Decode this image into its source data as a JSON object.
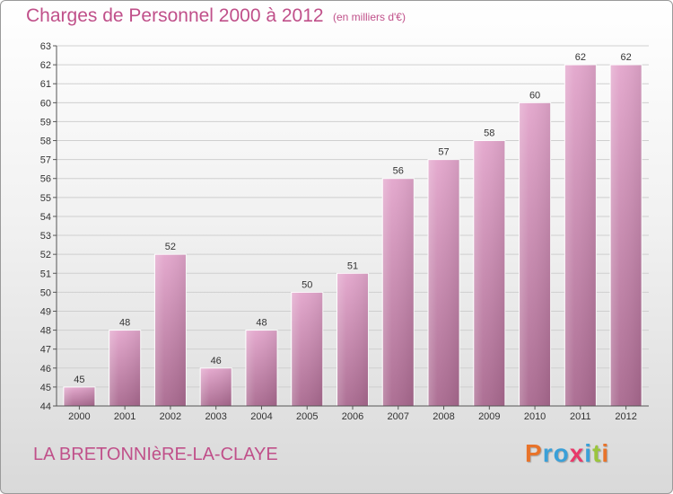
{
  "header": {
    "title": "Charges de Personnel 2000 à 2012",
    "subtitle": "(en milliers d'€)"
  },
  "footer": {
    "commune": "LA BRETONNIèRE-LA-CLAYE",
    "logo_letters": [
      "P",
      "r",
      "o",
      "x",
      "i",
      "t",
      "i"
    ],
    "logo_colors": [
      "#e8732a",
      "#3aa0d8",
      "#3aa0d8",
      "#e83a6a",
      "#3aa0d8",
      "#9bc53d",
      "#e8732a"
    ]
  },
  "chart_data": {
    "type": "bar",
    "title": "Charges de Personnel 2000 à 2012",
    "subtitle": "(en milliers d'€)",
    "categories": [
      "2000",
      "2001",
      "2002",
      "2003",
      "2004",
      "2005",
      "2006",
      "2007",
      "2008",
      "2009",
      "2010",
      "2011",
      "2012"
    ],
    "values": [
      45,
      48,
      52,
      46,
      48,
      50,
      51,
      56,
      57,
      58,
      60,
      62,
      62
    ],
    "xlabel": "",
    "ylabel": "",
    "ylim": [
      44,
      63
    ],
    "yticks": [
      44,
      45,
      46,
      47,
      48,
      49,
      50,
      51,
      52,
      53,
      54,
      55,
      56,
      57,
      58,
      59,
      60,
      61,
      62,
      63
    ],
    "grid": true,
    "bar_color": "#d994bd"
  }
}
